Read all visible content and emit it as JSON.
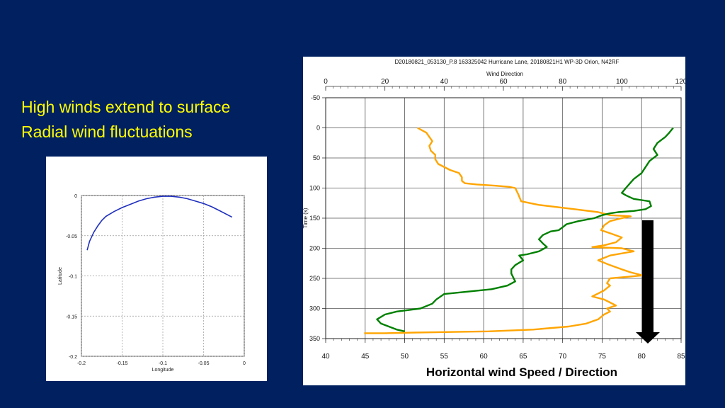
{
  "slide": {
    "bullets": [
      "High winds extend to surface",
      "Radial wind fluctuations"
    ],
    "caption": "Horizontal wind Speed / Direction"
  },
  "colors": {
    "background": "#002060",
    "bullet_text": "#FFFF00",
    "track_line": "#1f2fbf",
    "speed_series": "#FFA500",
    "direction_series": "#008000",
    "arrow": "#000000"
  },
  "chart_data": [
    {
      "type": "line",
      "xlabel": "Longitude",
      "ylabel": "Latitude",
      "xlim": [
        -0.2,
        0
      ],
      "ylim": [
        -0.2,
        0
      ],
      "xticks": [
        "-0.2",
        "-0.15",
        "-0.1",
        "-0.05",
        "0"
      ],
      "yticks": [
        "0",
        "-0.05",
        "-0.1",
        "-0.15",
        "-0.2"
      ],
      "grid": true,
      "series": [
        {
          "x": [
            -0.193,
            -0.19,
            -0.185,
            -0.18,
            -0.175,
            -0.17,
            -0.16,
            -0.15,
            -0.14,
            -0.13,
            -0.12,
            -0.11,
            -0.1,
            -0.09,
            -0.08,
            -0.07,
            -0.06,
            -0.05,
            -0.04,
            -0.03,
            -0.015
          ],
          "y": [
            -0.068,
            -0.057,
            -0.046,
            -0.038,
            -0.031,
            -0.026,
            -0.02,
            -0.015,
            -0.011,
            -0.007,
            -0.004,
            -0.002,
            -0.001,
            -0.001,
            -0.002,
            -0.004,
            -0.007,
            -0.01,
            -0.014,
            -0.019,
            -0.027
          ]
        }
      ]
    },
    {
      "type": "line",
      "title": "D20180821_053130_P.8 163325042 Hurricane Lane, 20180821H1 WP-3D Orion, N42RF",
      "x2label": "Wind Direction",
      "ylabel": "Time (s)",
      "xlabel": "",
      "xlim": [
        40,
        85
      ],
      "x2lim": [
        0,
        120
      ],
      "ylim": [
        -50,
        350
      ],
      "y_inverted": true,
      "xticks": [
        "40",
        "45",
        "50",
        "55",
        "60",
        "65",
        "70",
        "75",
        "80",
        "85"
      ],
      "x2ticks": [
        "0",
        "20",
        "40",
        "60",
        "80",
        "100",
        "120"
      ],
      "yticks": [
        "-50",
        "0",
        "50",
        "100",
        "150",
        "200",
        "250",
        "300",
        "350"
      ],
      "grid": true,
      "series": [
        {
          "axis": "top",
          "color": "#FFA500",
          "x": [
            31,
            34,
            35,
            36,
            35,
            35.5,
            37,
            37,
            38,
            42,
            45,
            46,
            46,
            47,
            51,
            57,
            62,
            64,
            65,
            66,
            72,
            84,
            92,
            96,
            103,
            100,
            96,
            94,
            93,
            96,
            100,
            98,
            94,
            90,
            100,
            104,
            96,
            92,
            96,
            100,
            103,
            107,
            96,
            95,
            96,
            94,
            92,
            90,
            94,
            96,
            98,
            95,
            96,
            94,
            92,
            88,
            82,
            70,
            55,
            30,
            20,
            15,
            13
          ],
          "y": [
            0,
            8,
            15,
            22,
            30,
            38,
            45,
            52,
            60,
            70,
            75,
            82,
            88,
            92,
            94,
            96,
            98,
            100,
            110,
            122,
            128,
            135,
            140,
            145,
            147,
            150,
            155,
            162,
            170,
            175,
            182,
            190,
            195,
            198,
            200,
            205,
            212,
            220,
            228,
            235,
            240,
            245,
            250,
            258,
            262,
            270,
            275,
            280,
            285,
            290,
            295,
            300,
            305,
            310,
            318,
            325,
            330,
            335,
            338,
            340,
            341,
            341,
            341
          ]
        },
        {
          "axis": "bottom",
          "color": "#008000",
          "x": [
            84,
            83.5,
            83,
            82,
            81.5,
            82,
            81,
            80.5,
            80,
            79,
            78,
            77.5,
            78,
            78.5,
            79,
            80,
            81,
            81.2,
            80.5,
            79,
            77,
            76,
            75,
            74,
            72,
            70.5,
            70,
            69.5,
            68.5,
            67.5,
            67,
            67.5,
            68,
            67,
            65.5,
            64.5,
            65,
            64,
            63.5,
            63.5,
            64,
            63,
            61,
            58,
            55,
            54,
            53.5,
            52,
            49,
            47.5,
            46.5,
            47,
            48,
            49,
            50
          ],
          "y": [
            0,
            8,
            15,
            25,
            35,
            45,
            55,
            65,
            75,
            85,
            100,
            108,
            112,
            115,
            118,
            120,
            122,
            130,
            135,
            138,
            140,
            142,
            145,
            150,
            155,
            160,
            165,
            170,
            172,
            178,
            185,
            192,
            198,
            205,
            210,
            212,
            220,
            228,
            235,
            242,
            255,
            262,
            268,
            272,
            276,
            285,
            292,
            300,
            305,
            310,
            318,
            325,
            330,
            335,
            338
          ]
        }
      ]
    }
  ]
}
